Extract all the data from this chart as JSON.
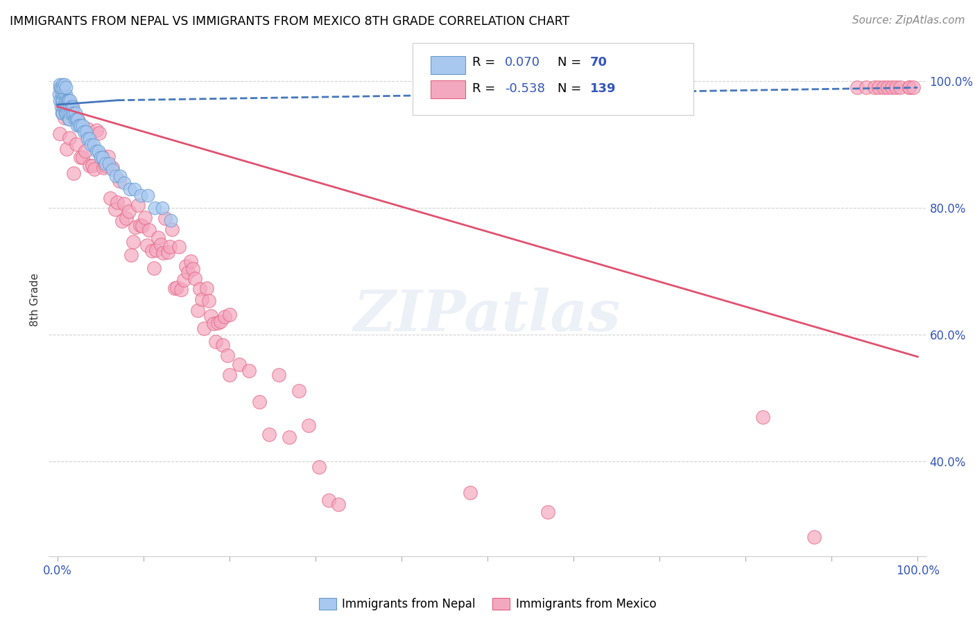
{
  "title": "IMMIGRANTS FROM NEPAL VS IMMIGRANTS FROM MEXICO 8TH GRADE CORRELATION CHART",
  "source": "Source: ZipAtlas.com",
  "ylabel": "8th Grade",
  "nepal_R": 0.07,
  "nepal_N": 70,
  "mexico_R": -0.538,
  "mexico_N": 139,
  "nepal_color": "#A8C8F0",
  "mexico_color": "#F4A8C0",
  "nepal_edge_color": "#6699CC",
  "mexico_edge_color": "#E06080",
  "nepal_line_color": "#4477BB",
  "mexico_line_color": "#E05070",
  "watermark": "ZIPatlas",
  "legend_label_nepal": "Immigrants from Nepal",
  "legend_label_mexico": "Immigrants from Mexico",
  "xlim": [
    0.0,
    1.0
  ],
  "ylim": [
    0.25,
    1.05
  ],
  "yticks": [
    0.4,
    0.6,
    0.8,
    1.0
  ],
  "ytick_labels": [
    "40.0%",
    "60.0%",
    "80.0%",
    "100.0%"
  ],
  "xtick_labels_show": [
    "0.0%",
    "100.0%"
  ],
  "nepal_line_x": [
    0.0,
    0.2
  ],
  "nepal_line_y": [
    0.963,
    0.98
  ],
  "mexico_line_x": [
    0.0,
    1.0
  ],
  "mexico_line_y": [
    0.96,
    0.565
  ]
}
